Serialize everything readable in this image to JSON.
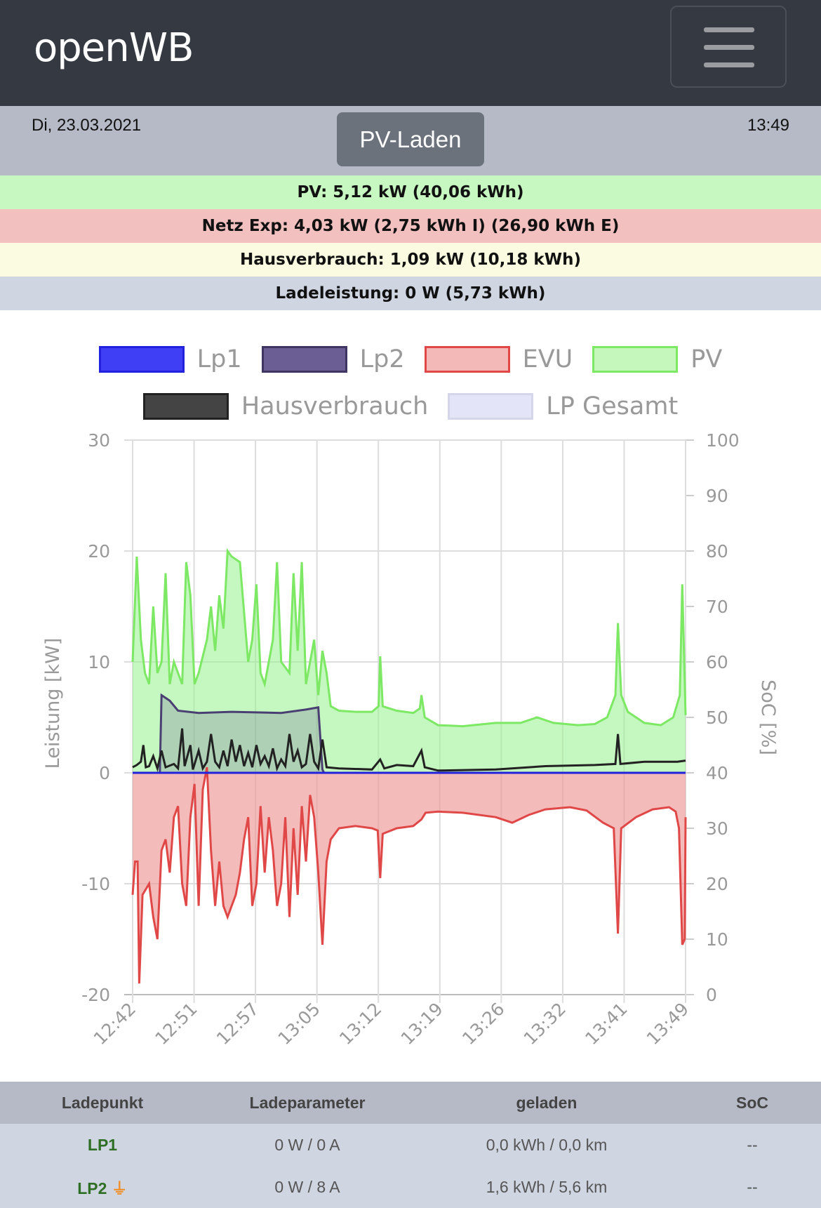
{
  "nav": {
    "brand": "openWB",
    "menu_icon": "hamburger-icon"
  },
  "status": {
    "date": "Di, 23.03.2021",
    "time": "13:49",
    "mode": "PV-Laden"
  },
  "summary": {
    "pv": "PV: 5,12 kW (40,06 kWh)",
    "netz": "Netz Exp: 4,03 kW (2,75 kWh I) (26,90 kWh E)",
    "haus": "Hausverbrauch: 1,09 kW (10,18 kWh)",
    "lade": "Ladeleistung: 0 W (5,73 kWh)"
  },
  "colors": {
    "pv_bg": "#c8f8c2",
    "netz_bg": "#f3c0c0",
    "haus_bg": "#fbfbe2",
    "lade_bg": "#d0d5e2"
  },
  "chart_data": {
    "type": "line",
    "legend": [
      {
        "name": "Lp1",
        "fill": "#3f3ff5",
        "stroke": "#2222dd"
      },
      {
        "name": "Lp2",
        "fill": "#6a5e94",
        "stroke": "#3e3560"
      },
      {
        "name": "EVU",
        "fill": "#f3b9b9",
        "stroke": "#e04848"
      },
      {
        "name": "PV",
        "fill": "#c5f7bc",
        "stroke": "#7ce863"
      },
      {
        "name": "Hausverbrauch",
        "fill": "#444444",
        "stroke": "#222222"
      },
      {
        "name": "LP Gesamt",
        "fill": "#e4e4f8",
        "stroke": "#d6d6ea"
      }
    ],
    "x_unit": "minutes since 12:42",
    "x_ticks": [
      "12:42",
      "12:51",
      "12:57",
      "13:05",
      "13:12",
      "13:19",
      "13:26",
      "13:32",
      "13:41",
      "13:49"
    ],
    "xlim": [
      0,
      67
    ],
    "ylabel": "Leistung [kW]",
    "ylim": [
      -20,
      30
    ],
    "yticks": [
      "30",
      "20",
      "10",
      "0",
      "-10",
      "-20"
    ],
    "y2label": "SoC [%]",
    "y2lim": [
      0,
      100
    ],
    "y2ticks": [
      "100",
      "90",
      "80",
      "70",
      "60",
      "50",
      "40",
      "30",
      "20",
      "10",
      "0"
    ],
    "series": {
      "PV": [
        [
          0,
          10
        ],
        [
          0.5,
          19.5
        ],
        [
          1,
          12
        ],
        [
          1.5,
          9
        ],
        [
          2,
          8
        ],
        [
          2.5,
          15
        ],
        [
          3,
          9
        ],
        [
          3.5,
          10
        ],
        [
          4,
          18
        ],
        [
          4.5,
          8
        ],
        [
          5,
          10
        ],
        [
          6,
          8
        ],
        [
          6.5,
          19
        ],
        [
          7,
          16
        ],
        [
          7.5,
          8
        ],
        [
          8,
          9
        ],
        [
          9,
          12
        ],
        [
          9.5,
          15
        ],
        [
          10,
          11
        ],
        [
          10.5,
          16
        ],
        [
          11,
          13
        ],
        [
          11.5,
          20
        ],
        [
          12,
          19.5
        ],
        [
          13,
          19
        ],
        [
          14,
          10
        ],
        [
          14.5,
          12
        ],
        [
          15,
          17
        ],
        [
          15.5,
          9
        ],
        [
          16,
          8
        ],
        [
          17,
          12
        ],
        [
          17.5,
          19
        ],
        [
          18,
          10
        ],
        [
          19,
          9
        ],
        [
          19.5,
          18
        ],
        [
          20,
          11
        ],
        [
          20.5,
          19
        ],
        [
          21,
          8
        ],
        [
          21.5,
          10
        ],
        [
          22,
          12
        ],
        [
          22.5,
          7
        ],
        [
          23,
          11
        ],
        [
          23.5,
          9
        ],
        [
          24,
          6
        ],
        [
          25,
          5.6
        ],
        [
          27,
          5.5
        ],
        [
          29,
          5.5
        ],
        [
          29.8,
          6
        ],
        [
          30,
          10.5
        ],
        [
          30.3,
          6
        ],
        [
          32,
          5.6
        ],
        [
          34,
          5.4
        ],
        [
          34.8,
          5.8
        ],
        [
          35,
          7
        ],
        [
          35.4,
          5
        ],
        [
          37,
          4.3
        ],
        [
          40,
          4.2
        ],
        [
          44,
          4.5
        ],
        [
          47,
          4.5
        ],
        [
          49,
          5
        ],
        [
          51,
          4.5
        ],
        [
          54,
          4.3
        ],
        [
          56,
          4.4
        ],
        [
          57.5,
          5
        ],
        [
          58.5,
          7
        ],
        [
          58.8,
          13.5
        ],
        [
          59.2,
          7
        ],
        [
          60,
          5.5
        ],
        [
          62,
          4.5
        ],
        [
          64,
          4.3
        ],
        [
          65.5,
          5
        ],
        [
          66.3,
          7
        ],
        [
          66.6,
          17
        ],
        [
          67,
          5.2
        ]
      ],
      "EVU": [
        [
          0,
          -11
        ],
        [
          0.3,
          -8
        ],
        [
          0.6,
          -8
        ],
        [
          0.8,
          -19
        ],
        [
          1.2,
          -11
        ],
        [
          2,
          -10
        ],
        [
          2.5,
          -13
        ],
        [
          3,
          -15
        ],
        [
          3.5,
          -7
        ],
        [
          4,
          -6
        ],
        [
          4.5,
          -9
        ],
        [
          5,
          -4
        ],
        [
          5.5,
          -3
        ],
        [
          6,
          -10
        ],
        [
          6.5,
          -12
        ],
        [
          7,
          -4
        ],
        [
          7.5,
          -1
        ],
        [
          8,
          -12
        ],
        [
          8.5,
          -1.5
        ],
        [
          9,
          0.5
        ],
        [
          9.5,
          -7
        ],
        [
          10,
          -12
        ],
        [
          10.5,
          -8
        ],
        [
          11,
          -12
        ],
        [
          11.5,
          -13
        ],
        [
          12,
          -12
        ],
        [
          12.5,
          -11
        ],
        [
          13,
          -9
        ],
        [
          13.5,
          -6
        ],
        [
          14,
          -4
        ],
        [
          14.5,
          -12
        ],
        [
          15,
          -10
        ],
        [
          15.5,
          -3
        ],
        [
          16,
          -9
        ],
        [
          16.5,
          -4
        ],
        [
          17,
          -7
        ],
        [
          17.5,
          -12
        ],
        [
          18,
          -10
        ],
        [
          18.5,
          -4
        ],
        [
          19,
          -13
        ],
        [
          19.5,
          -5
        ],
        [
          20,
          -11
        ],
        [
          20.5,
          -3
        ],
        [
          21,
          -8
        ],
        [
          21.5,
          -2
        ],
        [
          22,
          -4
        ],
        [
          22.5,
          -9
        ],
        [
          23,
          -15.5
        ],
        [
          23.5,
          -8
        ],
        [
          24,
          -6
        ],
        [
          25,
          -5
        ],
        [
          27,
          -4.8
        ],
        [
          29,
          -5
        ],
        [
          29.7,
          -5.2
        ],
        [
          30,
          -9.5
        ],
        [
          30.3,
          -5.5
        ],
        [
          32,
          -5
        ],
        [
          34,
          -4.8
        ],
        [
          35,
          -4.2
        ],
        [
          35.5,
          -3.6
        ],
        [
          37,
          -3.5
        ],
        [
          40,
          -3.6
        ],
        [
          44,
          -4
        ],
        [
          46,
          -4.5
        ],
        [
          48,
          -3.8
        ],
        [
          50,
          -3.3
        ],
        [
          53,
          -3.1
        ],
        [
          55,
          -3.4
        ],
        [
          57,
          -4.5
        ],
        [
          58.3,
          -5
        ],
        [
          58.8,
          -14.5
        ],
        [
          59.2,
          -5
        ],
        [
          61,
          -4
        ],
        [
          63,
          -3.3
        ],
        [
          65,
          -3.1
        ],
        [
          65.8,
          -3.5
        ],
        [
          66.2,
          -5
        ],
        [
          66.6,
          -15.5
        ],
        [
          66.9,
          -15
        ],
        [
          67,
          -4
        ]
      ],
      "Hausverbrauch": [
        [
          0,
          0.5
        ],
        [
          0.5,
          0.7
        ],
        [
          1,
          1
        ],
        [
          1.3,
          2.5
        ],
        [
          1.6,
          0.5
        ],
        [
          2,
          0.6
        ],
        [
          2.5,
          1.5
        ],
        [
          3,
          0.4
        ],
        [
          3.5,
          2
        ],
        [
          4,
          0.5
        ],
        [
          5,
          0.8
        ],
        [
          5.5,
          0.4
        ],
        [
          6,
          4
        ],
        [
          6.3,
          0.6
        ],
        [
          7,
          2.5
        ],
        [
          7.3,
          0.3
        ],
        [
          8,
          2
        ],
        [
          8.5,
          0.4
        ],
        [
          9,
          1
        ],
        [
          9.5,
          3.5
        ],
        [
          10,
          1
        ],
        [
          10.5,
          0.5
        ],
        [
          11,
          2
        ],
        [
          11.5,
          0.6
        ],
        [
          12,
          3
        ],
        [
          12.5,
          1
        ],
        [
          13,
          2.5
        ],
        [
          13.5,
          0.6
        ],
        [
          14,
          1.8
        ],
        [
          14.5,
          0.5
        ],
        [
          15,
          2.5
        ],
        [
          15.5,
          0.8
        ],
        [
          16,
          1.5
        ],
        [
          16.5,
          0.6
        ],
        [
          17,
          2.2
        ],
        [
          17.5,
          0.4
        ],
        [
          18,
          1.2
        ],
        [
          18.5,
          0.6
        ],
        [
          19,
          3.5
        ],
        [
          19.5,
          1
        ],
        [
          20,
          2
        ],
        [
          20.5,
          0.5
        ],
        [
          21,
          0.8
        ],
        [
          21.5,
          3.5
        ],
        [
          22,
          1
        ],
        [
          22.5,
          0.4
        ],
        [
          23,
          3
        ],
        [
          23.5,
          0.5
        ],
        [
          25,
          0.4
        ],
        [
          29,
          0.3
        ],
        [
          30,
          1.2
        ],
        [
          30.5,
          0.4
        ],
        [
          32,
          0.7
        ],
        [
          34,
          0.6
        ],
        [
          35,
          2
        ],
        [
          35.4,
          0.5
        ],
        [
          37,
          0.2
        ],
        [
          44,
          0.3
        ],
        [
          50,
          0.6
        ],
        [
          56,
          0.7
        ],
        [
          58.5,
          0.8
        ],
        [
          58.8,
          3.5
        ],
        [
          59.1,
          0.8
        ],
        [
          62,
          1
        ],
        [
          66,
          1
        ],
        [
          67,
          1.1
        ]
      ],
      "Lp2": [
        [
          0,
          0
        ],
        [
          3.3,
          0
        ],
        [
          3.5,
          7
        ],
        [
          4.5,
          6.5
        ],
        [
          5.5,
          5.6
        ],
        [
          8,
          5.4
        ],
        [
          12,
          5.5
        ],
        [
          18,
          5.4
        ],
        [
          21,
          5.7
        ],
        [
          22.5,
          5.9
        ],
        [
          23,
          0.3
        ],
        [
          23.2,
          0
        ],
        [
          67,
          0
        ]
      ],
      "Lp1": [
        [
          0,
          0
        ],
        [
          67,
          0
        ]
      ]
    }
  },
  "table": {
    "headers": [
      "Ladepunkt",
      "Ladeparameter",
      "geladen",
      "SoC"
    ],
    "rows": [
      {
        "name": "LP1",
        "param": "0 W / 0 A",
        "charged": "0,0 kWh / 0,0 km",
        "soc": "--",
        "plug": false
      },
      {
        "name": "LP2",
        "param": "0 W / 8 A",
        "charged": "1,6 kWh / 5,6 km",
        "soc": "--",
        "plug": true,
        "plug_icon": "plug-icon"
      }
    ]
  }
}
